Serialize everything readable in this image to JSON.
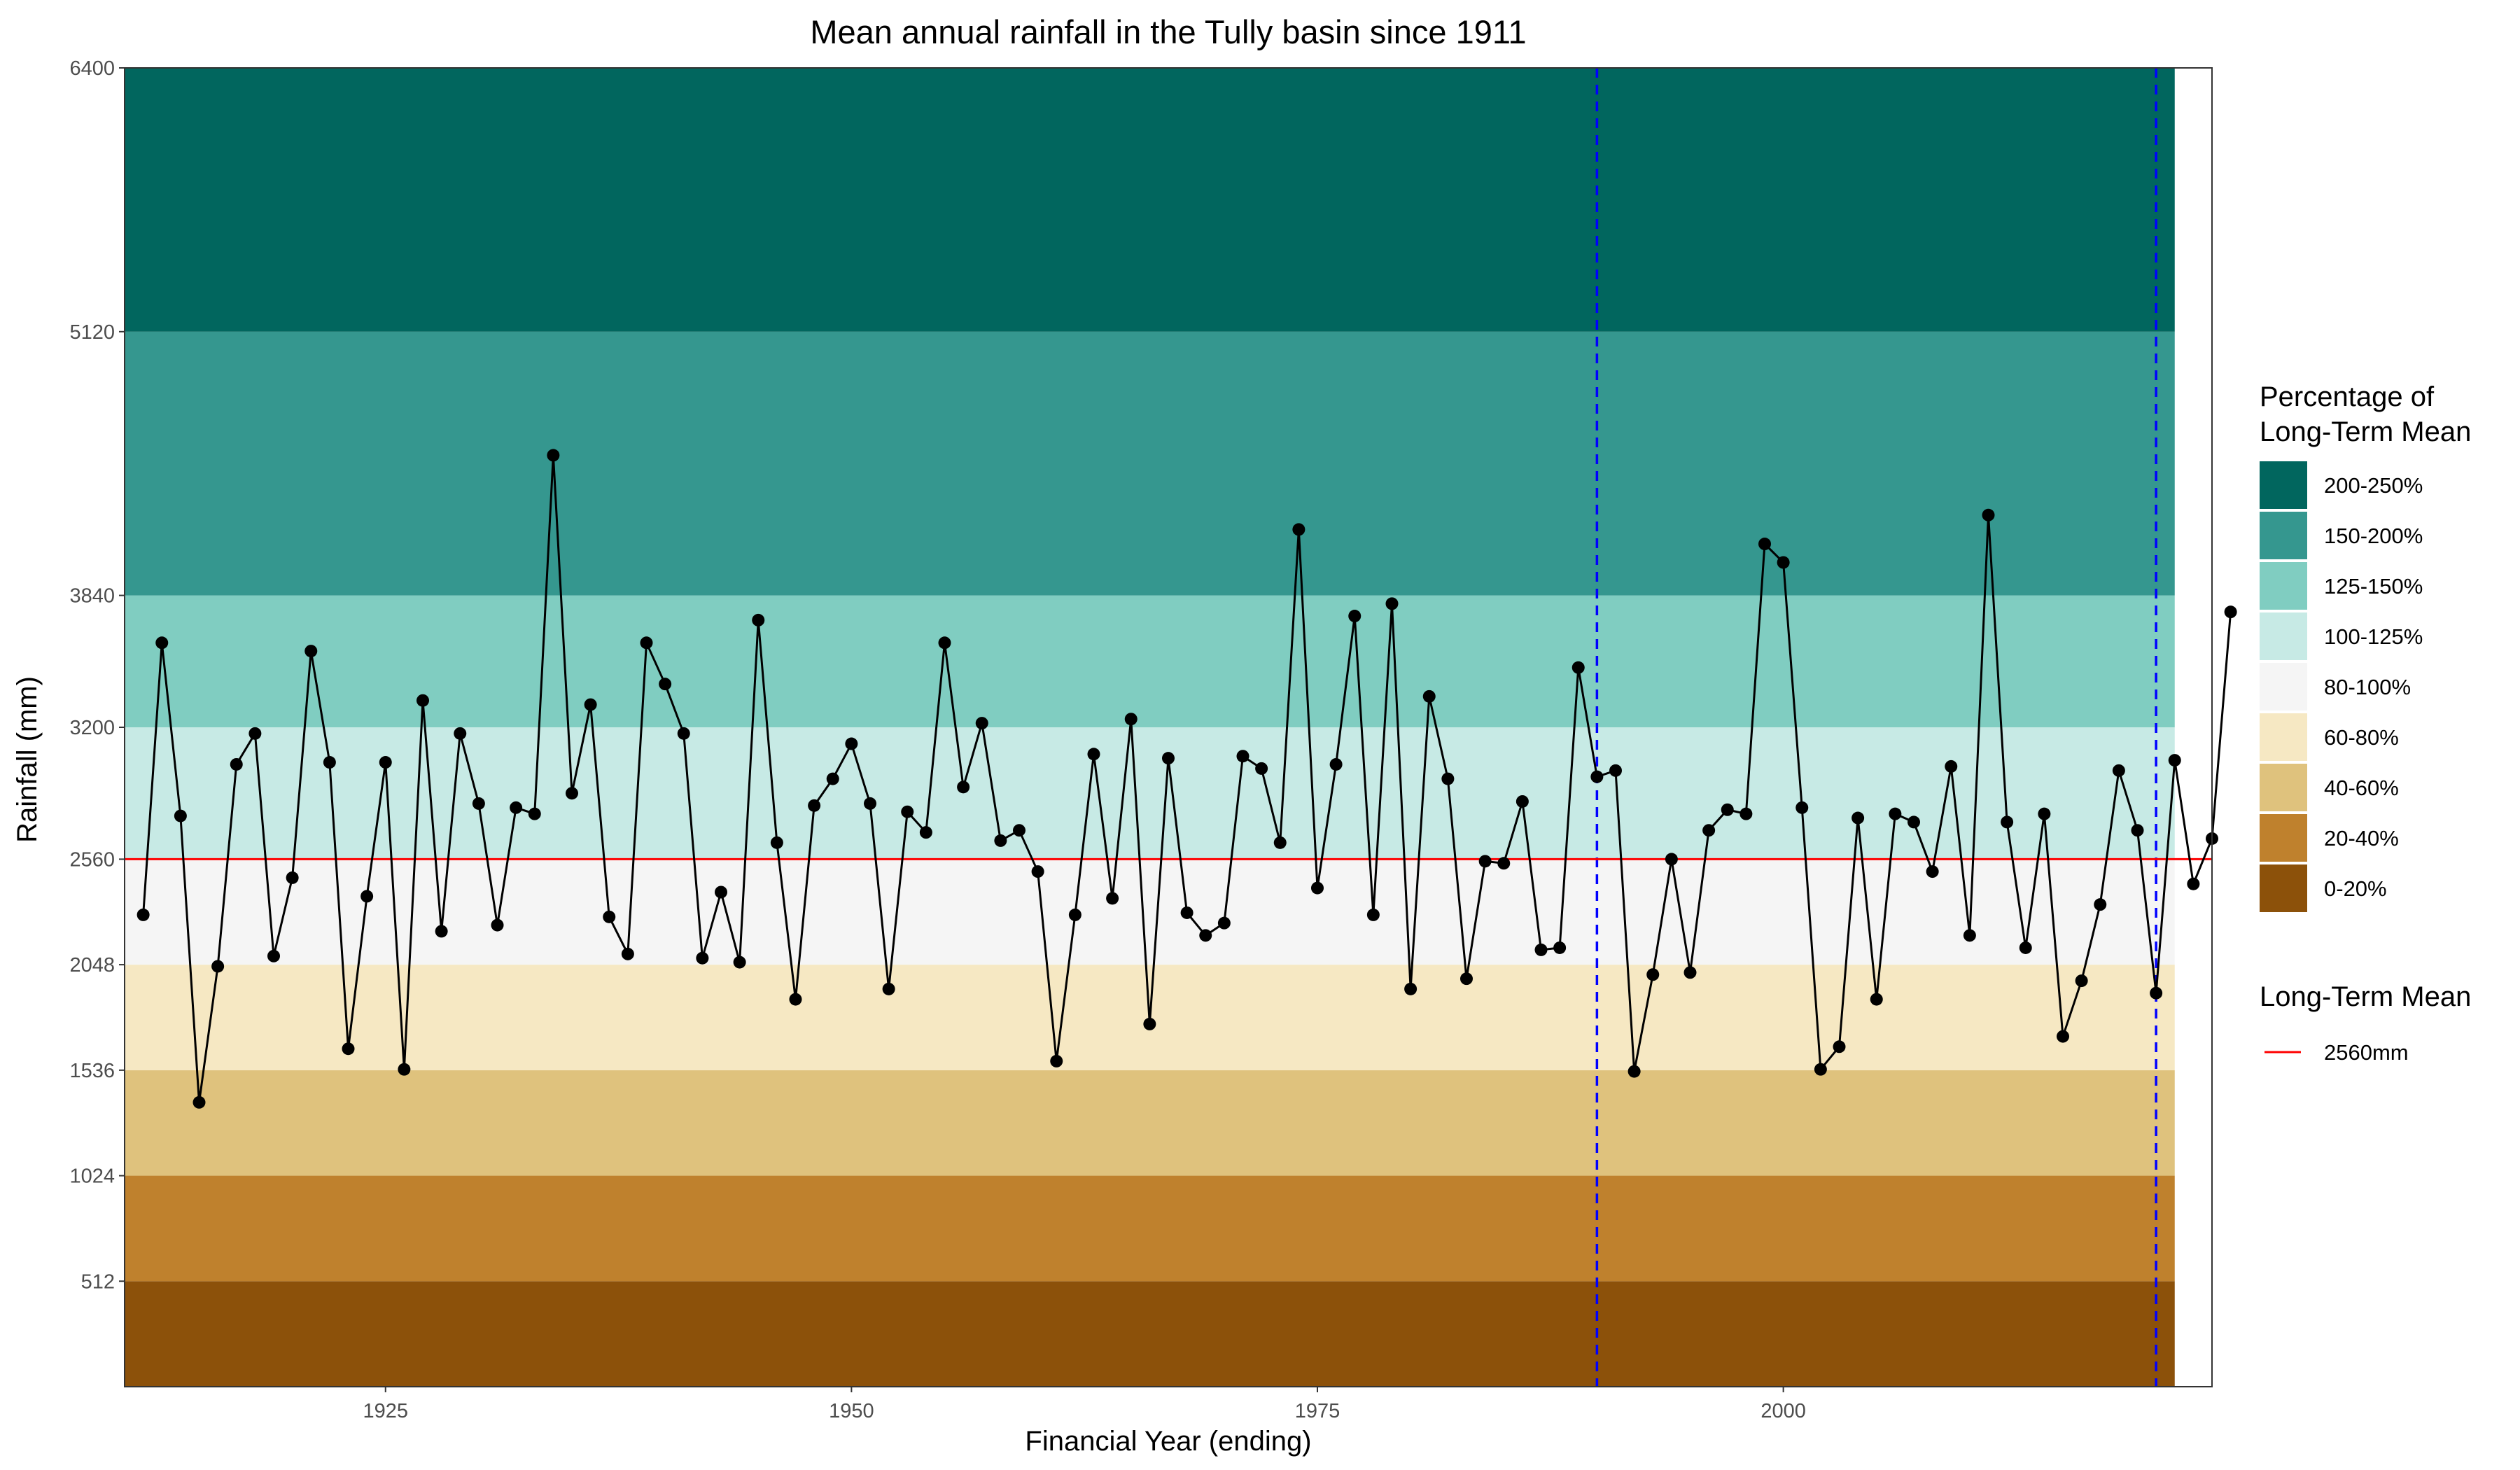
{
  "chart_data": {
    "type": "line",
    "title": "Mean annual rainfall in the Tully basin since 1911",
    "xlabel": "Financial Year (ending)",
    "ylabel": "Rainfall (mm)",
    "xlim": [
      1911,
      2023
    ],
    "ylim": [
      0,
      6400
    ],
    "x_ticks": [
      1925,
      1950,
      1975,
      2000
    ],
    "y_ticks": [
      512,
      1024,
      1536,
      2048,
      2560,
      3200,
      3840,
      5120,
      6400
    ],
    "grid": false,
    "legend_position": "right",
    "long_term_mean": 2560,
    "mean_line_color": "#ff0000",
    "vlines": [
      1990,
      2020
    ],
    "vline_color": "#0000ff",
    "bands_end_year": 2021,
    "bands": [
      {
        "label": "0-20%",
        "lo": 0,
        "hi": 512,
        "color": "#8c510a"
      },
      {
        "label": "20-40%",
        "lo": 512,
        "hi": 1024,
        "color": "#bf812d"
      },
      {
        "label": "40-60%",
        "lo": 1024,
        "hi": 1536,
        "color": "#dfc27d"
      },
      {
        "label": "60-80%",
        "lo": 1536,
        "hi": 2048,
        "color": "#f6e8c3"
      },
      {
        "label": "80-100%",
        "lo": 2048,
        "hi": 2560,
        "color": "#f5f5f5"
      },
      {
        "label": "100-125%",
        "lo": 2560,
        "hi": 3200,
        "color": "#c7eae5"
      },
      {
        "label": "125-150%",
        "lo": 3200,
        "hi": 3840,
        "color": "#80cdc1"
      },
      {
        "label": "150-200%",
        "lo": 3840,
        "hi": 5120,
        "color": "#35978f"
      },
      {
        "label": "200-250%",
        "lo": 5120,
        "hi": 6400,
        "color": "#01665e"
      }
    ],
    "series": [
      {
        "x": [
          1912,
          1913,
          1914,
          1915,
          1916,
          1917,
          1918,
          1919,
          1920,
          1921,
          1922,
          1923,
          1924,
          1925,
          1926,
          1927,
          1928,
          1929,
          1930,
          1931,
          1932,
          1933,
          1934,
          1935,
          1936,
          1937,
          1938,
          1939,
          1940,
          1941,
          1942,
          1943,
          1944,
          1945,
          1946,
          1947,
          1948,
          1949,
          1950,
          1951,
          1952,
          1953,
          1954,
          1955,
          1956,
          1957,
          1958,
          1959,
          1960,
          1961,
          1962,
          1963,
          1964,
          1965,
          1966,
          1967,
          1968,
          1969,
          1970,
          1971,
          1972,
          1973,
          1974,
          1975,
          1976,
          1977,
          1978,
          1979,
          1980,
          1981,
          1982,
          1983,
          1984,
          1985,
          1986,
          1987,
          1988,
          1989,
          1990,
          1991,
          1992,
          1993,
          1994,
          1995,
          1996,
          1997,
          1998,
          1999,
          2000,
          2001,
          2002,
          2003,
          2004,
          2005,
          2006,
          2007,
          2008,
          2009,
          2010,
          2011,
          2012,
          2013,
          2014,
          2015,
          2016,
          2017,
          2018,
          2019,
          2020,
          2021,
          2022,
          2023,
          2024
        ],
        "y": [
          2290,
          3610,
          2770,
          1380,
          2040,
          3020,
          3170,
          2090,
          2470,
          3570,
          3030,
          1640,
          2380,
          3030,
          1540,
          3330,
          2210,
          3170,
          2830,
          2240,
          2810,
          2780,
          4520,
          2880,
          3310,
          2280,
          2100,
          3610,
          3410,
          3170,
          2080,
          2400,
          2060,
          3720,
          2640,
          1880,
          2820,
          2950,
          3120,
          2830,
          1930,
          2790,
          2690,
          3610,
          2910,
          3220,
          2650,
          2700,
          2500,
          1580,
          2290,
          3070,
          2370,
          3240,
          1760,
          3050,
          2300,
          2190,
          2250,
          3060,
          3000,
          2640,
          4160,
          2420,
          3020,
          3740,
          2290,
          3800,
          1930,
          3350,
          2950,
          1980,
          2550,
          2540,
          2840,
          2120,
          2130,
          3490,
          2960,
          2990,
          1530,
          2000,
          2560,
          2010,
          2700,
          2800,
          2780,
          4090,
          4000,
          2810,
          1540,
          1650,
          2760,
          1880,
          2780,
          2740,
          2500,
          3010,
          2190,
          4230,
          2740,
          2130,
          2780,
          1700,
          1970,
          2340,
          2990,
          2700,
          1910,
          3040,
          2440,
          2660,
          3760
        ]
      }
    ],
    "legend": {
      "fill_title_line1": "Percentage of",
      "fill_title_line2": "Long-Term Mean",
      "mean_title": "Long-Term Mean",
      "mean_label": "2560mm"
    }
  }
}
